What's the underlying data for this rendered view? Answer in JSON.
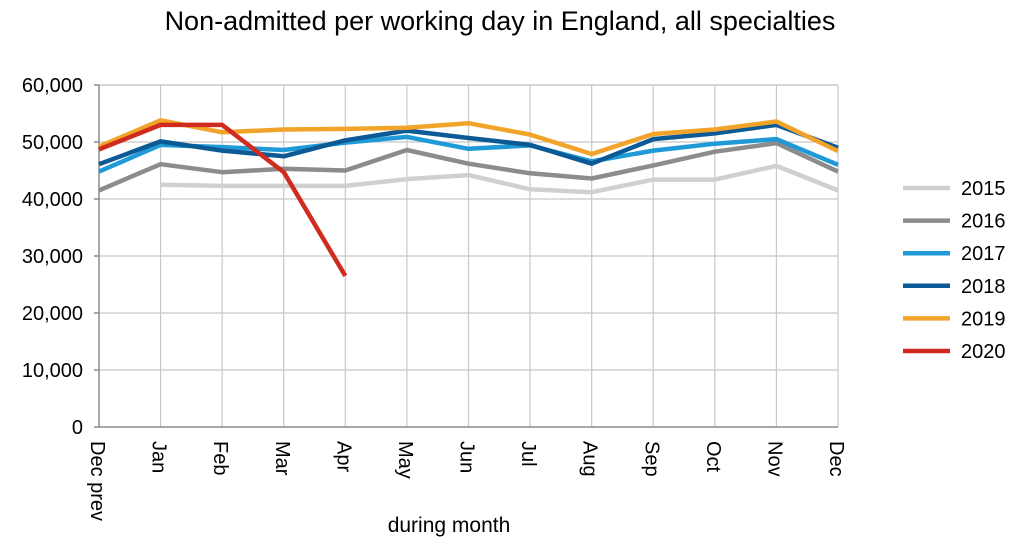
{
  "chart_data": {
    "type": "line",
    "title": "Non-admitted per working day in England, all specialties",
    "xlabel": "during month",
    "ylabel": "",
    "ylim": [
      0,
      60000
    ],
    "yticks": [
      "0",
      "10,000",
      "20,000",
      "30,000",
      "40,000",
      "50,000",
      "60,000"
    ],
    "categories": [
      "Dec prev",
      "Jan",
      "Feb",
      "Mar",
      "Apr",
      "May",
      "Jun",
      "Jul",
      "Aug",
      "Sep",
      "Oct",
      "Nov",
      "Dec"
    ],
    "grid": true,
    "legend_position": "right",
    "series": [
      {
        "name": "2015",
        "color": "#d0d0d0",
        "values": [
          null,
          42500,
          42300,
          42300,
          42300,
          43500,
          44200,
          41700,
          41200,
          43400,
          43400,
          45800,
          41500
        ]
      },
      {
        "name": "2016",
        "color": "#8c8c8c",
        "values": [
          41500,
          46100,
          44700,
          45300,
          45000,
          48600,
          46200,
          44500,
          43600,
          45900,
          48300,
          49800,
          44800
        ]
      },
      {
        "name": "2017",
        "color": "#1f9ad6",
        "values": [
          44800,
          49500,
          49100,
          48600,
          49900,
          50900,
          48800,
          49400,
          46600,
          48500,
          49700,
          50500,
          46000
        ]
      },
      {
        "name": "2018",
        "color": "#0b5a96",
        "values": [
          46100,
          50100,
          48500,
          47500,
          50300,
          52000,
          50700,
          49500,
          46200,
          50500,
          51500,
          53000,
          49000
        ]
      },
      {
        "name": "2019",
        "color": "#f2a42a",
        "values": [
          49200,
          53800,
          51700,
          52200,
          52300,
          52500,
          53300,
          51300,
          47900,
          51400,
          52200,
          53600,
          48400
        ]
      },
      {
        "name": "2020",
        "color": "#d02b1e",
        "values": [
          48700,
          53000,
          53000,
          44700,
          26500,
          null,
          null,
          null,
          null,
          null,
          null,
          null,
          null
        ]
      }
    ]
  }
}
